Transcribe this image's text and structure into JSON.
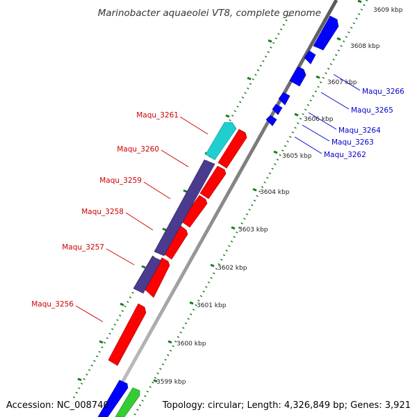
{
  "title": "Marinobacter aquaeolei VT8, complete genome",
  "accession": "Accession: NC_008740",
  "summary": "Topology: circular; Length: 4,326,849 bp; Genes: 3,921",
  "colors": {
    "backbone": "#888888",
    "ticks": "#1a7a1a",
    "forward_gene": "#0000ff",
    "reverse_gene": "#ff0000",
    "purple_gene": "#4b3b8f",
    "cyan_gene": "#1fcfcf",
    "green_gene": "#33cc33",
    "forward_label": "#0000cc",
    "reverse_label": "#cc0000"
  },
  "scale": [
    "3599 kbp",
    "3600 kbp",
    "3601 kbp",
    "3602 kbp",
    "3603 kbp",
    "3604 kbp",
    "3605 kbp",
    "3606 kbp",
    "3607 kbp",
    "3608 kbp",
    "3609 kbp"
  ],
  "genes_forward": [
    "Maqu_3262",
    "Maqu_3263",
    "Maqu_3264",
    "Maqu_3265",
    "Maqu_3266"
  ],
  "genes_reverse": [
    "Maqu_3256",
    "Maqu_3257",
    "Maqu_3258",
    "Maqu_3259",
    "Maqu_3260",
    "Maqu_3261"
  ]
}
